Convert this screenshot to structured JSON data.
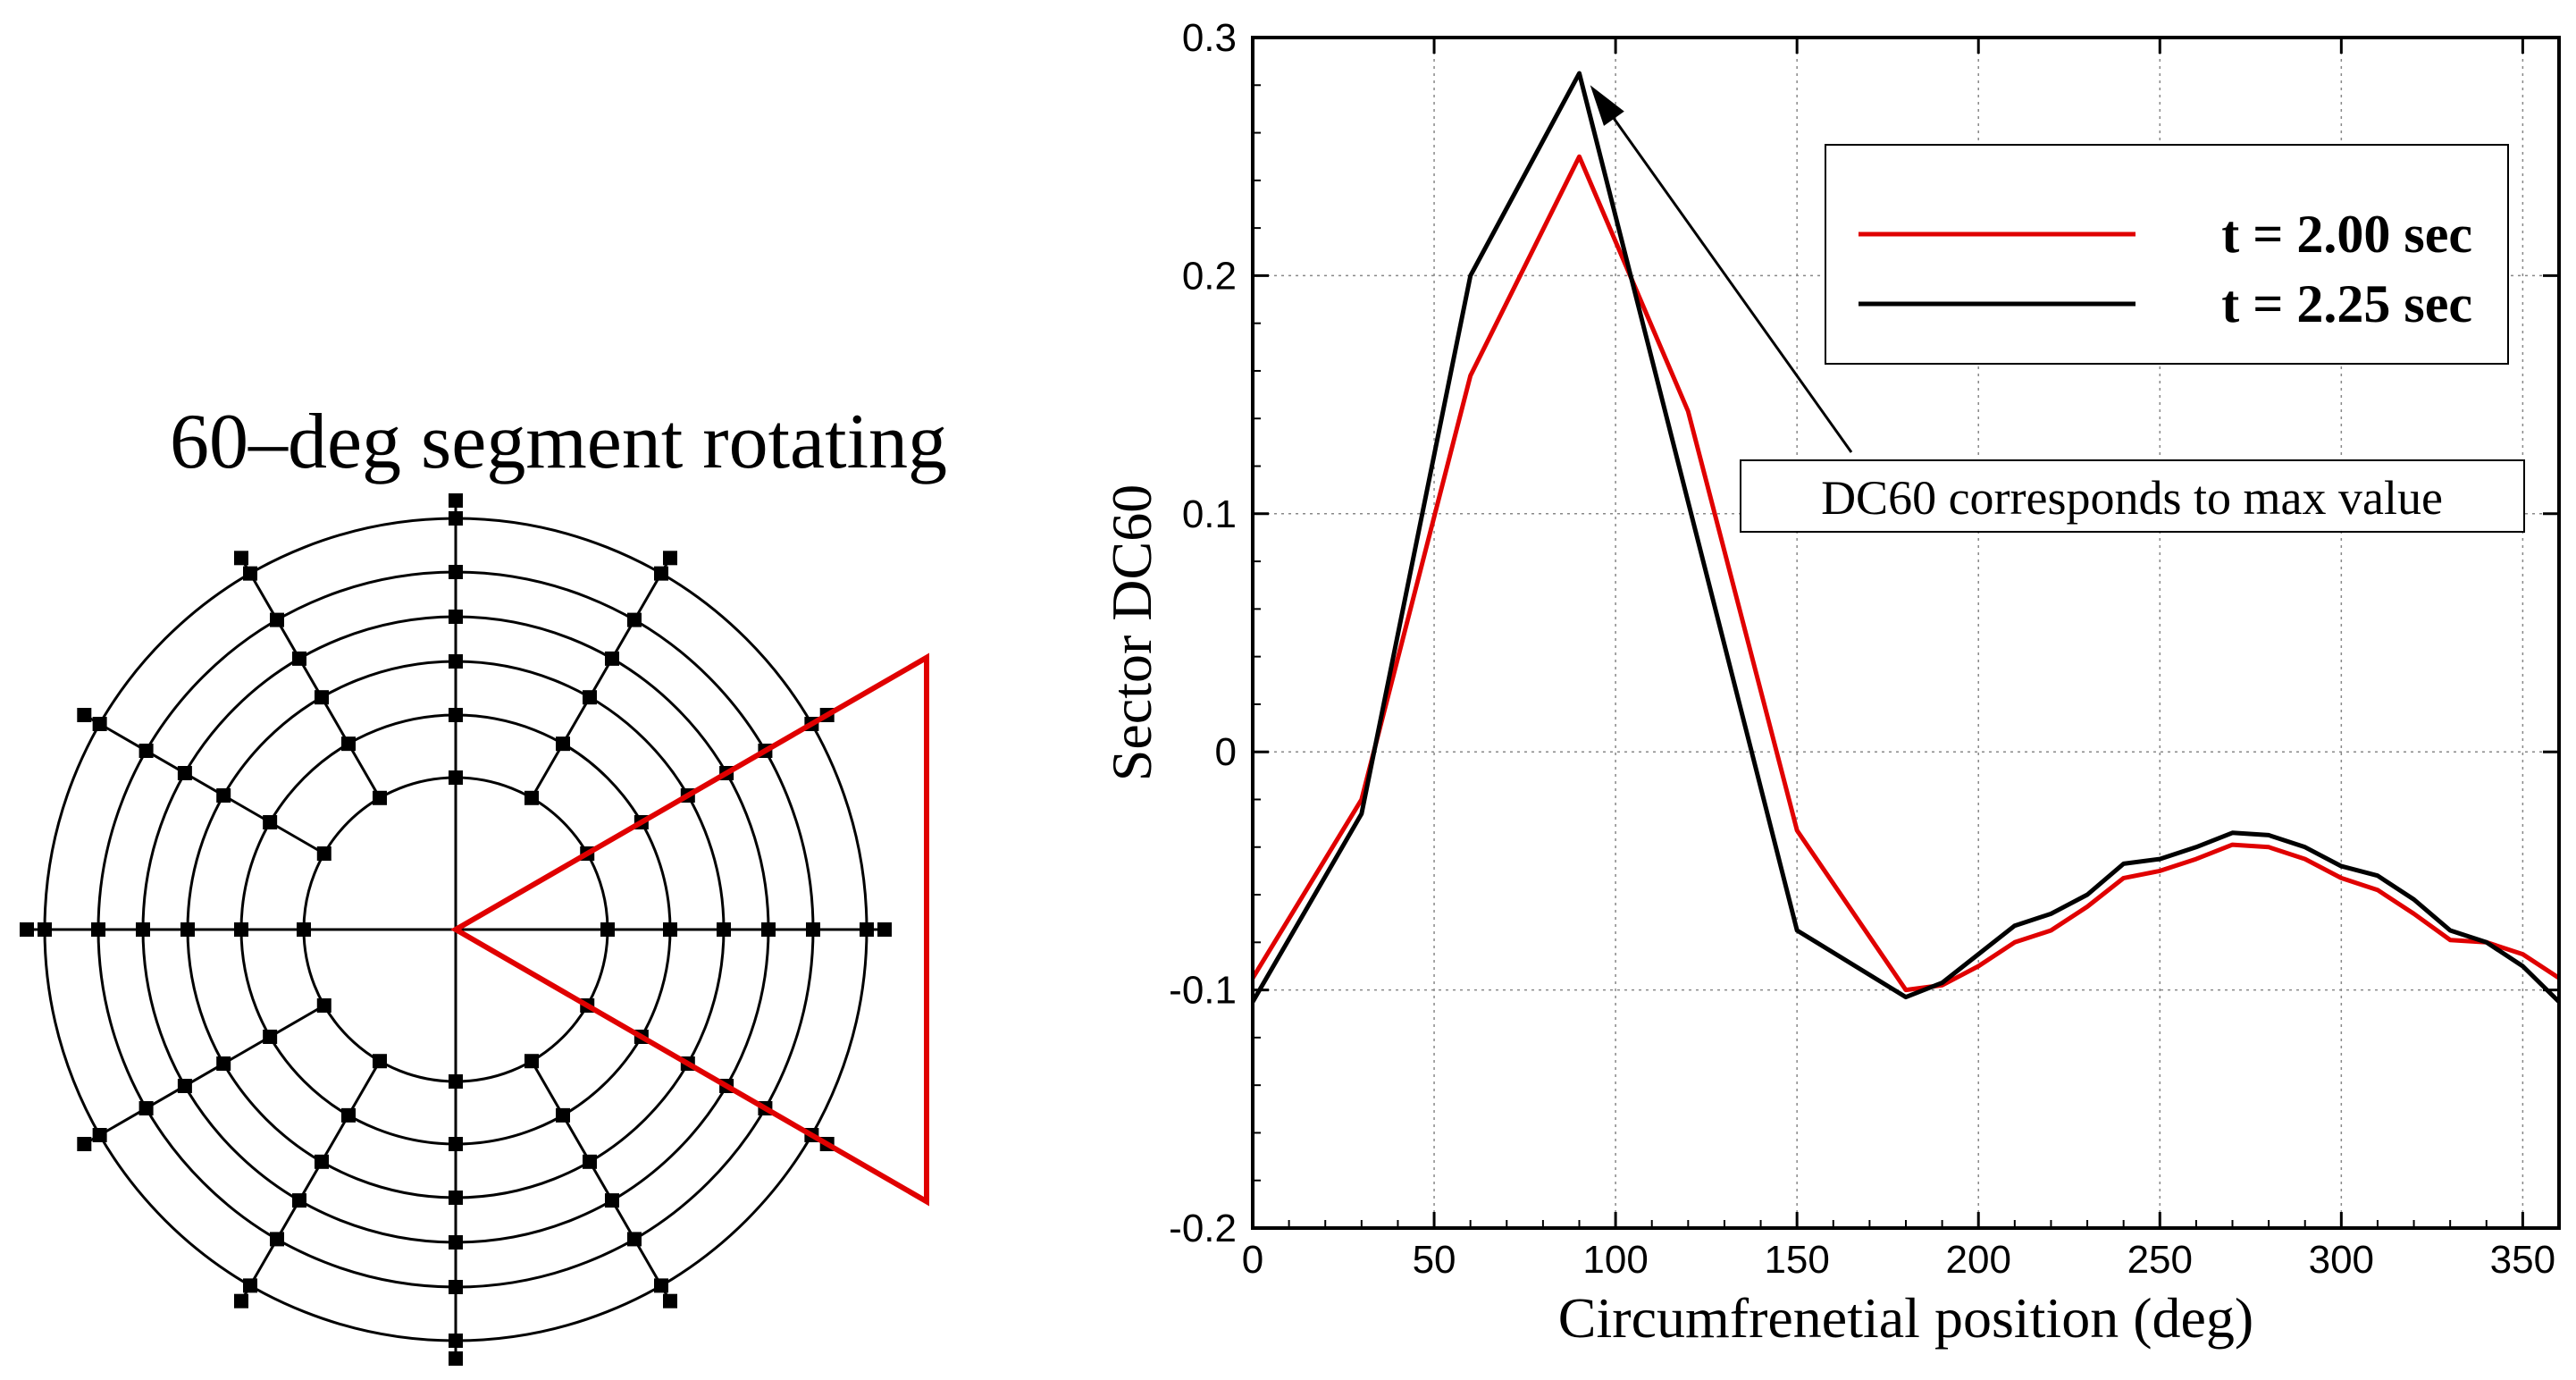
{
  "diagram": {
    "title": "60–deg segment rotating",
    "ring_count": 6,
    "spoke_angles_deg": [
      0,
      30,
      60,
      90,
      120,
      150,
      180,
      210,
      240,
      270,
      300,
      330
    ],
    "sector": {
      "center_deg": 0,
      "span_deg": 60
    },
    "colors": {
      "grid": "#000000",
      "sector": "#e00000"
    }
  },
  "chart_data": {
    "type": "line",
    "xlabel": "Circumfrenetial position (deg)",
    "ylabel": "Sector DC60",
    "xlim": [
      0,
      360
    ],
    "ylim": [
      -0.2,
      0.3
    ],
    "xticks": [
      0,
      50,
      100,
      150,
      200,
      250,
      300,
      350
    ],
    "xtick_labels": [
      "0",
      "50",
      "100",
      "150",
      "200",
      "250",
      "300",
      "350"
    ],
    "yticks": [
      -0.2,
      -0.1,
      0,
      0.1,
      0.2,
      0.3
    ],
    "ytick_labels": [
      "-0.2",
      "-0.1",
      "0",
      "0.1",
      "0.2",
      "0.3"
    ],
    "grid": true,
    "legend_position": "top-right",
    "series": [
      {
        "name": "t = 2.00 sec",
        "color": "#e00000",
        "x": [
          0,
          30,
          60,
          90,
          120,
          150,
          180,
          190,
          200,
          210,
          220,
          230,
          240,
          250,
          260,
          270,
          280,
          290,
          300,
          310,
          320,
          330,
          340,
          350,
          360
        ],
        "y": [
          -0.095,
          -0.02,
          0.158,
          0.25,
          0.143,
          -0.033,
          -0.1,
          -0.098,
          -0.09,
          -0.08,
          -0.075,
          -0.065,
          -0.053,
          -0.05,
          -0.045,
          -0.039,
          -0.04,
          -0.045,
          -0.053,
          -0.058,
          -0.068,
          -0.079,
          -0.08,
          -0.085,
          -0.095
        ]
      },
      {
        "name": "t = 2.25 sec",
        "color": "#000000",
        "x": [
          0,
          30,
          60,
          90,
          120,
          150,
          180,
          190,
          200,
          210,
          220,
          230,
          240,
          250,
          260,
          270,
          280,
          290,
          300,
          310,
          320,
          330,
          340,
          350,
          360
        ],
        "y": [
          -0.105,
          -0.026,
          0.2,
          0.285,
          0.105,
          -0.075,
          -0.103,
          -0.097,
          -0.085,
          -0.073,
          -0.068,
          -0.06,
          -0.047,
          -0.045,
          -0.04,
          -0.034,
          -0.035,
          -0.04,
          -0.048,
          -0.052,
          -0.062,
          -0.075,
          -0.08,
          -0.09,
          -0.105
        ]
      }
    ],
    "annotation": {
      "text": "DC60 corresponds to max value",
      "arrow_to": {
        "x": 93,
        "y": 0.28
      }
    }
  }
}
